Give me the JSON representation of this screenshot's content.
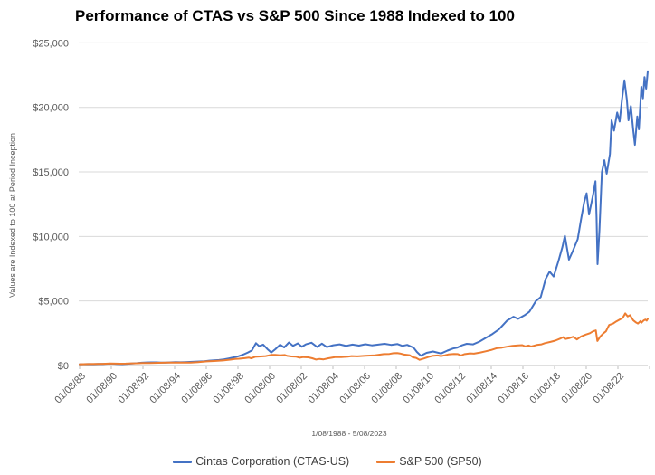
{
  "title": "Performance of CTAS vs S&P 500 Since 1988 Indexed to 100",
  "chart_data": {
    "type": "line",
    "title": "Performance of CTAS vs S&P 500 Since 1988 Indexed to 100",
    "xlabel": "",
    "ylabel": "Values are Indexed to 100 at Period Inception",
    "x_caption": "1/08/1988 - 5/08/2023",
    "ylim": [
      0,
      25000
    ],
    "xlim": [
      1988.04,
      2023.45
    ],
    "grid": true,
    "legend_position": "bottom",
    "y_ticks": [
      {
        "value": 0,
        "label": "$0"
      },
      {
        "value": 5000,
        "label": "$5,000"
      },
      {
        "value": 10000,
        "label": "$10,000"
      },
      {
        "value": 15000,
        "label": "$15,000"
      },
      {
        "value": 20000,
        "label": "$20,000"
      },
      {
        "value": 25000,
        "label": "$25,000"
      }
    ],
    "x_tick_labels": [
      "01/08/88",
      "01/08/90",
      "01/08/92",
      "01/08/94",
      "01/08/96",
      "01/08/98",
      "01/08/00",
      "01/08/02",
      "01/08/04",
      "01/08/06",
      "01/08/08",
      "01/08/10",
      "01/08/12",
      "01/08/14",
      "01/08/16",
      "01/08/18",
      "01/08/20",
      "01/08/22"
    ],
    "colors": {
      "ctas": "#4472C4",
      "sp500": "#ED7D31",
      "gridline": "#D9D9D9",
      "axis": "#BFBFBF",
      "tick_label": "#595959",
      "title": "#000000"
    },
    "series": [
      {
        "name": "Cintas Corporation (CTAS-US)",
        "color_key": "ctas",
        "points": [
          [
            1988.04,
            100
          ],
          [
            1988.3,
            104
          ],
          [
            1988.6,
            110
          ],
          [
            1988.9,
            107
          ],
          [
            1989.2,
            118
          ],
          [
            1989.5,
            128
          ],
          [
            1989.8,
            138
          ],
          [
            1990.1,
            142
          ],
          [
            1990.4,
            128
          ],
          [
            1990.7,
            112
          ],
          [
            1991,
            135
          ],
          [
            1991.3,
            158
          ],
          [
            1991.6,
            185
          ],
          [
            1991.9,
            215
          ],
          [
            1992.2,
            235
          ],
          [
            1992.5,
            248
          ],
          [
            1992.8,
            242
          ],
          [
            1993.1,
            232
          ],
          [
            1993.4,
            226
          ],
          [
            1993.7,
            244
          ],
          [
            1994,
            258
          ],
          [
            1994.3,
            252
          ],
          [
            1994.6,
            268
          ],
          [
            1994.9,
            278
          ],
          [
            1995.2,
            292
          ],
          [
            1995.5,
            312
          ],
          [
            1995.8,
            336
          ],
          [
            1996.1,
            378
          ],
          [
            1996.4,
            404
          ],
          [
            1996.7,
            428
          ],
          [
            1997,
            478
          ],
          [
            1997.3,
            548
          ],
          [
            1997.6,
            622
          ],
          [
            1997.9,
            716
          ],
          [
            1998.2,
            838
          ],
          [
            1998.5,
            1010
          ],
          [
            1998.75,
            1180
          ],
          [
            1999,
            1730
          ],
          [
            1999.2,
            1500
          ],
          [
            1999.45,
            1620
          ],
          [
            1999.7,
            1280
          ],
          [
            1999.95,
            1010
          ],
          [
            2000.2,
            1260
          ],
          [
            2000.5,
            1610
          ],
          [
            2000.75,
            1400
          ],
          [
            2001.05,
            1790
          ],
          [
            2001.3,
            1520
          ],
          [
            2001.6,
            1720
          ],
          [
            2001.85,
            1460
          ],
          [
            2002.1,
            1640
          ],
          [
            2002.45,
            1770
          ],
          [
            2002.8,
            1440
          ],
          [
            2003.1,
            1700
          ],
          [
            2003.4,
            1430
          ],
          [
            2003.8,
            1570
          ],
          [
            2004.2,
            1640
          ],
          [
            2004.6,
            1520
          ],
          [
            2005,
            1620
          ],
          [
            2005.4,
            1540
          ],
          [
            2005.8,
            1650
          ],
          [
            2006.2,
            1560
          ],
          [
            2006.6,
            1620
          ],
          [
            2007,
            1680
          ],
          [
            2007.4,
            1600
          ],
          [
            2007.8,
            1660
          ],
          [
            2008.1,
            1520
          ],
          [
            2008.4,
            1600
          ],
          [
            2008.8,
            1380
          ],
          [
            2009,
            1050
          ],
          [
            2009.25,
            760
          ],
          [
            2009.6,
            980
          ],
          [
            2010,
            1090
          ],
          [
            2010.5,
            930
          ],
          [
            2010.9,
            1160
          ],
          [
            2011.25,
            1320
          ],
          [
            2011.5,
            1380
          ],
          [
            2011.8,
            1560
          ],
          [
            2012.1,
            1680
          ],
          [
            2012.5,
            1640
          ],
          [
            2012.9,
            1860
          ],
          [
            2013.3,
            2150
          ],
          [
            2013.7,
            2450
          ],
          [
            2014.1,
            2800
          ],
          [
            2014.6,
            3480
          ],
          [
            2015,
            3780
          ],
          [
            2015.3,
            3620
          ],
          [
            2015.7,
            3900
          ],
          [
            2016,
            4180
          ],
          [
            2016.4,
            5000
          ],
          [
            2016.7,
            5300
          ],
          [
            2017,
            6700
          ],
          [
            2017.25,
            7280
          ],
          [
            2017.5,
            6900
          ],
          [
            2017.8,
            8100
          ],
          [
            2018.05,
            9200
          ],
          [
            2018.2,
            10050
          ],
          [
            2018.45,
            8200
          ],
          [
            2018.7,
            8900
          ],
          [
            2019,
            9800
          ],
          [
            2019.2,
            11300
          ],
          [
            2019.4,
            12650
          ],
          [
            2019.55,
            13350
          ],
          [
            2019.7,
            11700
          ],
          [
            2019.95,
            13200
          ],
          [
            2020.1,
            14280
          ],
          [
            2020.17,
            11500
          ],
          [
            2020.23,
            7850
          ],
          [
            2020.35,
            10500
          ],
          [
            2020.5,
            14980
          ],
          [
            2020.65,
            15910
          ],
          [
            2020.8,
            14860
          ],
          [
            2021,
            16400
          ],
          [
            2021.1,
            19000
          ],
          [
            2021.25,
            18200
          ],
          [
            2021.45,
            19600
          ],
          [
            2021.6,
            18900
          ],
          [
            2021.75,
            20600
          ],
          [
            2021.9,
            22100
          ],
          [
            2022.05,
            20600
          ],
          [
            2022.15,
            19000
          ],
          [
            2022.3,
            20100
          ],
          [
            2022.45,
            18200
          ],
          [
            2022.55,
            17100
          ],
          [
            2022.7,
            19300
          ],
          [
            2022.8,
            18300
          ],
          [
            2022.95,
            21600
          ],
          [
            2023.05,
            20700
          ],
          [
            2023.15,
            22350
          ],
          [
            2023.25,
            21450
          ],
          [
            2023.35,
            22800
          ]
        ]
      },
      {
        "name": "S&P 500 (SP50)",
        "color_key": "sp500",
        "points": [
          [
            1988.04,
            100
          ],
          [
            1988.5,
            109
          ],
          [
            1989,
            117
          ],
          [
            1989.5,
            135
          ],
          [
            1989.95,
            153
          ],
          [
            1990.3,
            150
          ],
          [
            1990.55,
            138
          ],
          [
            1990.9,
            149
          ],
          [
            1991.3,
            168
          ],
          [
            1991.6,
            178
          ],
          [
            1991.95,
            194
          ],
          [
            1992.4,
            199
          ],
          [
            1992.95,
            209
          ],
          [
            1993.5,
            221
          ],
          [
            1993.95,
            230
          ],
          [
            1994.3,
            224
          ],
          [
            1994.6,
            228
          ],
          [
            1994.95,
            233
          ],
          [
            1995.4,
            262
          ],
          [
            1995.95,
            320
          ],
          [
            1996.4,
            350
          ],
          [
            1996.95,
            394
          ],
          [
            1997.4,
            455
          ],
          [
            1997.7,
            510
          ],
          [
            1997.95,
            526
          ],
          [
            1998.3,
            570
          ],
          [
            1998.55,
            620
          ],
          [
            1998.7,
            560
          ],
          [
            1998.95,
            676
          ],
          [
            1999.3,
            700
          ],
          [
            1999.6,
            730
          ],
          [
            1999.95,
            818
          ],
          [
            2000.2,
            830
          ],
          [
            2000.5,
            790
          ],
          [
            2000.8,
            810
          ],
          [
            2000.95,
            744
          ],
          [
            2001.2,
            700
          ],
          [
            2001.5,
            680
          ],
          [
            2001.72,
            600
          ],
          [
            2001.95,
            655
          ],
          [
            2002.25,
            630
          ],
          [
            2002.5,
            560
          ],
          [
            2002.74,
            460
          ],
          [
            2002.95,
            510
          ],
          [
            2003.2,
            480
          ],
          [
            2003.5,
            560
          ],
          [
            2003.95,
            657
          ],
          [
            2004.3,
            650
          ],
          [
            2004.7,
            680
          ],
          [
            2004.95,
            728
          ],
          [
            2005.3,
            710
          ],
          [
            2005.7,
            740
          ],
          [
            2005.95,
            764
          ],
          [
            2006.4,
            790
          ],
          [
            2006.7,
            840
          ],
          [
            2006.95,
            885
          ],
          [
            2007.3,
            900
          ],
          [
            2007.55,
            950
          ],
          [
            2007.78,
            960
          ],
          [
            2007.95,
            933
          ],
          [
            2008.2,
            850
          ],
          [
            2008.55,
            800
          ],
          [
            2008.75,
            640
          ],
          [
            2008.95,
            588
          ],
          [
            2009.17,
            440
          ],
          [
            2009.45,
            550
          ],
          [
            2009.7,
            650
          ],
          [
            2009.95,
            744
          ],
          [
            2010.3,
            780
          ],
          [
            2010.5,
            730
          ],
          [
            2010.75,
            790
          ],
          [
            2010.95,
            856
          ],
          [
            2011.3,
            890
          ],
          [
            2011.55,
            880
          ],
          [
            2011.75,
            780
          ],
          [
            2011.95,
            874
          ],
          [
            2012.3,
            940
          ],
          [
            2012.55,
            920
          ],
          [
            2012.95,
            1013
          ],
          [
            2013.3,
            1110
          ],
          [
            2013.6,
            1200
          ],
          [
            2013.95,
            1342
          ],
          [
            2014.3,
            1390
          ],
          [
            2014.6,
            1460
          ],
          [
            2014.95,
            1525
          ],
          [
            2015.3,
            1560
          ],
          [
            2015.55,
            1580
          ],
          [
            2015.75,
            1480
          ],
          [
            2015.95,
            1547
          ],
          [
            2016.1,
            1470
          ],
          [
            2016.45,
            1590
          ],
          [
            2016.75,
            1640
          ],
          [
            2016.95,
            1732
          ],
          [
            2017.3,
            1830
          ],
          [
            2017.6,
            1930
          ],
          [
            2017.95,
            2110
          ],
          [
            2018.1,
            2200
          ],
          [
            2018.2,
            2050
          ],
          [
            2018.5,
            2130
          ],
          [
            2018.72,
            2230
          ],
          [
            2018.95,
            2017
          ],
          [
            2019.2,
            2250
          ],
          [
            2019.5,
            2400
          ],
          [
            2019.75,
            2500
          ],
          [
            2019.95,
            2652
          ],
          [
            2020.12,
            2720
          ],
          [
            2020.22,
            1900
          ],
          [
            2020.4,
            2250
          ],
          [
            2020.6,
            2500
          ],
          [
            2020.75,
            2650
          ],
          [
            2020.95,
            3140
          ],
          [
            2021.2,
            3250
          ],
          [
            2021.4,
            3420
          ],
          [
            2021.6,
            3560
          ],
          [
            2021.8,
            3700
          ],
          [
            2021.95,
            4040
          ],
          [
            2022.1,
            3800
          ],
          [
            2022.25,
            3900
          ],
          [
            2022.45,
            3500
          ],
          [
            2022.6,
            3350
          ],
          [
            2022.74,
            3250
          ],
          [
            2022.9,
            3450
          ],
          [
            2022.95,
            3310
          ],
          [
            2023.1,
            3500
          ],
          [
            2023.2,
            3560
          ],
          [
            2023.28,
            3480
          ],
          [
            2023.35,
            3610
          ]
        ]
      }
    ],
    "legend": [
      {
        "label": "Cintas Corporation (CTAS-US)",
        "color_key": "ctas"
      },
      {
        "label": "S&P 500 (SP50)",
        "color_key": "sp500"
      }
    ]
  }
}
